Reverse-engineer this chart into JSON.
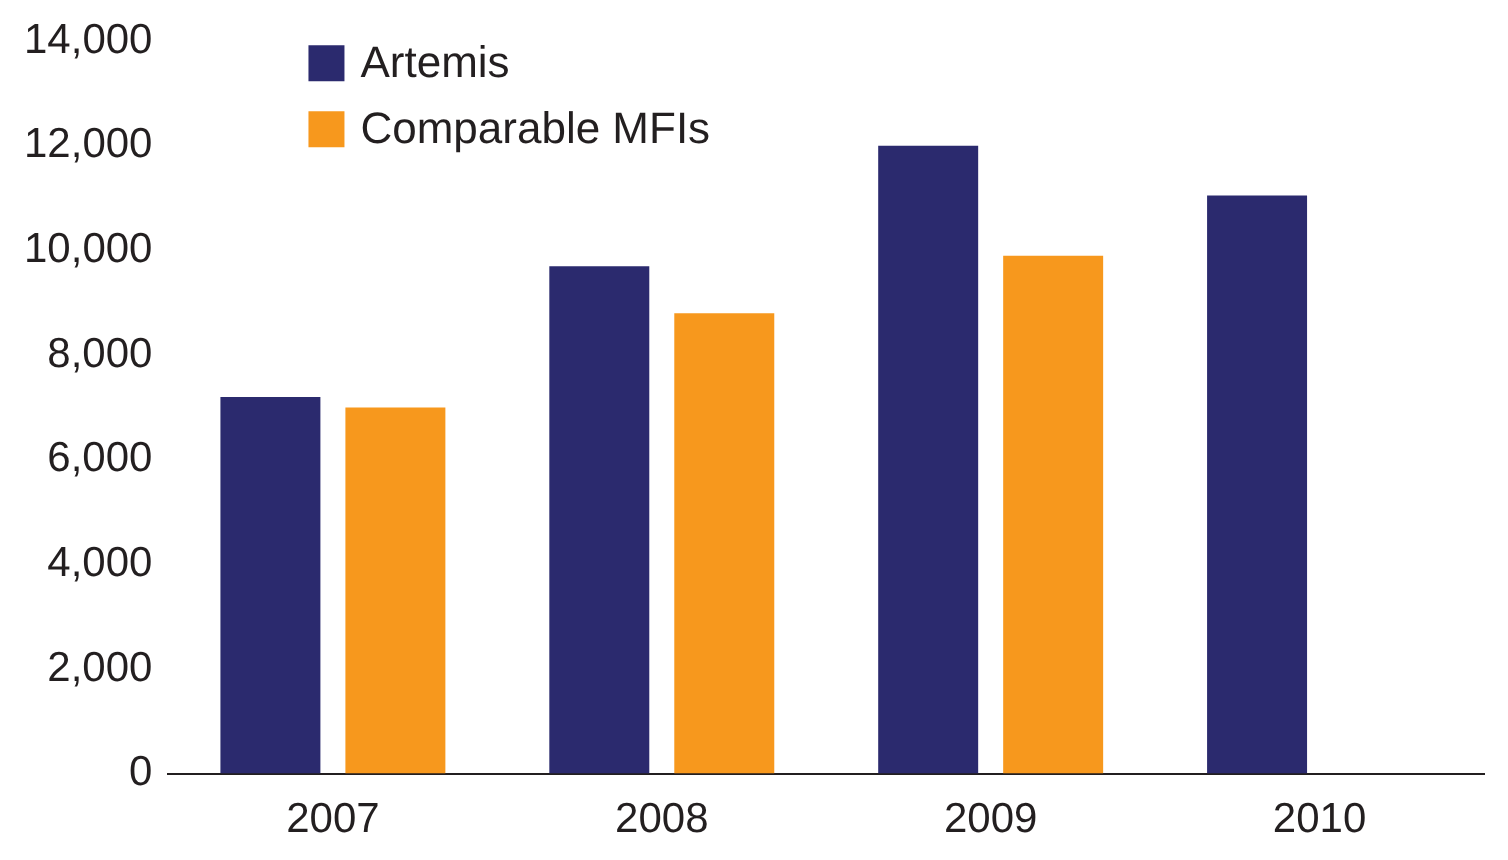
{
  "chart_data": {
    "type": "bar",
    "categories": [
      "2007",
      "2008",
      "2009",
      "2010"
    ],
    "series": [
      {
        "name": "Artemis",
        "color": "#2b2a6e",
        "values": [
          7200,
          9700,
          12000,
          11050
        ]
      },
      {
        "name": "Comparable MFIs",
        "color": "#f7981d",
        "values": [
          7000,
          8800,
          9900,
          null
        ]
      }
    ],
    "ylim": [
      0,
      14000
    ],
    "yticks": [
      0,
      {
        "value": 2000,
        "label": "2,000"
      },
      {
        "value": 4000,
        "label": "4,000"
      },
      {
        "value": 6000,
        "label": "6,000"
      },
      {
        "value": 8000,
        "label": "8,000"
      },
      {
        "value": 10000,
        "label": "10,000"
      },
      {
        "value": 12000,
        "label": "12,000"
      },
      {
        "value": 14000,
        "label": "14,000"
      }
    ],
    "grid": false,
    "legend": "top left"
  }
}
